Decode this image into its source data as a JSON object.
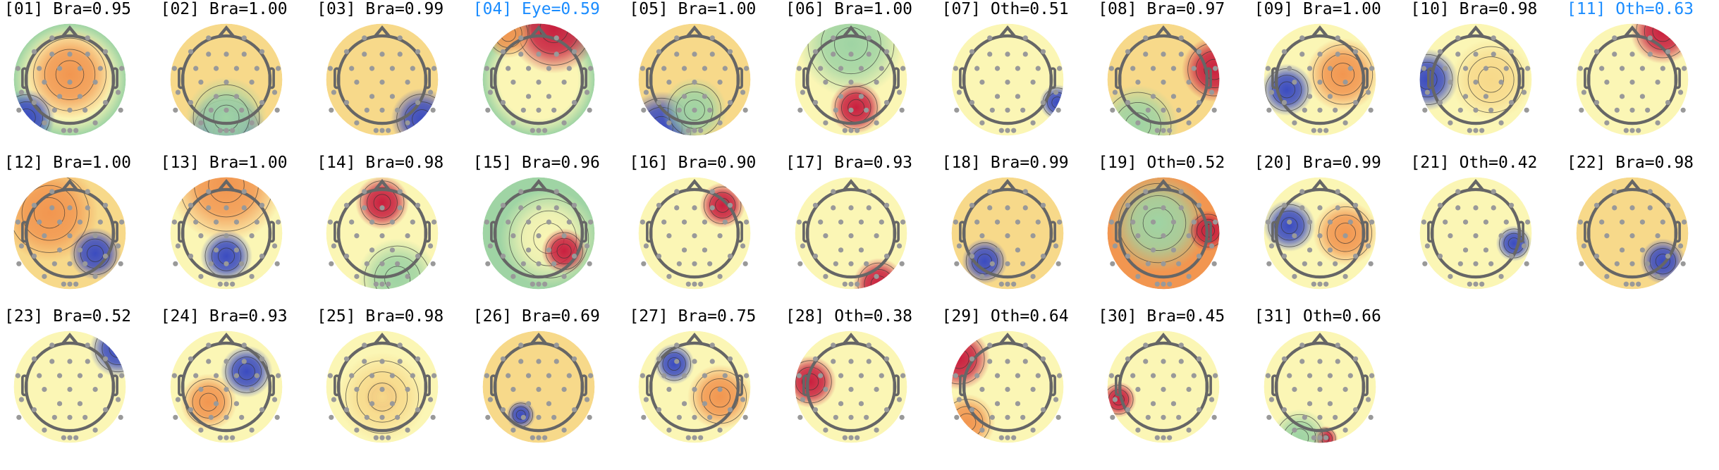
{
  "highlight_color": "#1a8cff",
  "chart_data": {
    "type": "heatmap",
    "layout": "grid of scalp topographic maps, 11 per row",
    "colormap": [
      "#3b4cc0",
      "#9fd4a4",
      "#fbf6b5",
      "#f4a25a",
      "#c9203f"
    ],
    "components": [
      {
        "label": "[01] Bra=0.95",
        "index": 1,
        "class": "Bra",
        "probability": 0.95,
        "highlighted": false
      },
      {
        "label": "[02] Bra=1.00",
        "index": 2,
        "class": "Bra",
        "probability": 1.0,
        "highlighted": false
      },
      {
        "label": "[03] Bra=0.99",
        "index": 3,
        "class": "Bra",
        "probability": 0.99,
        "highlighted": false
      },
      {
        "label": "[04] Eye=0.59",
        "index": 4,
        "class": "Eye",
        "probability": 0.59,
        "highlighted": true
      },
      {
        "label": "[05] Bra=1.00",
        "index": 5,
        "class": "Bra",
        "probability": 1.0,
        "highlighted": false
      },
      {
        "label": "[06] Bra=1.00",
        "index": 6,
        "class": "Bra",
        "probability": 1.0,
        "highlighted": false
      },
      {
        "label": "[07] Oth=0.51",
        "index": 7,
        "class": "Oth",
        "probability": 0.51,
        "highlighted": false
      },
      {
        "label": "[08] Bra=0.97",
        "index": 8,
        "class": "Bra",
        "probability": 0.97,
        "highlighted": false
      },
      {
        "label": "[09] Bra=1.00",
        "index": 9,
        "class": "Bra",
        "probability": 1.0,
        "highlighted": false
      },
      {
        "label": "[10] Bra=0.98",
        "index": 10,
        "class": "Bra",
        "probability": 0.98,
        "highlighted": false
      },
      {
        "label": "[11] Oth=0.63",
        "index": 11,
        "class": "Oth",
        "probability": 0.63,
        "highlighted": true
      },
      {
        "label": "[12] Bra=1.00",
        "index": 12,
        "class": "Bra",
        "probability": 1.0,
        "highlighted": false
      },
      {
        "label": "[13] Bra=1.00",
        "index": 13,
        "class": "Bra",
        "probability": 1.0,
        "highlighted": false
      },
      {
        "label": "[14] Bra=0.98",
        "index": 14,
        "class": "Bra",
        "probability": 0.98,
        "highlighted": false
      },
      {
        "label": "[15] Bra=0.96",
        "index": 15,
        "class": "Bra",
        "probability": 0.96,
        "highlighted": false
      },
      {
        "label": "[16] Bra=0.90",
        "index": 16,
        "class": "Bra",
        "probability": 0.9,
        "highlighted": false
      },
      {
        "label": "[17] Bra=0.93",
        "index": 17,
        "class": "Bra",
        "probability": 0.93,
        "highlighted": false
      },
      {
        "label": "[18] Bra=0.99",
        "index": 18,
        "class": "Bra",
        "probability": 0.99,
        "highlighted": false
      },
      {
        "label": "[19] Oth=0.52",
        "index": 19,
        "class": "Oth",
        "probability": 0.52,
        "highlighted": false
      },
      {
        "label": "[20] Bra=0.99",
        "index": 20,
        "class": "Bra",
        "probability": 0.99,
        "highlighted": false
      },
      {
        "label": "[21] Oth=0.42",
        "index": 21,
        "class": "Oth",
        "probability": 0.42,
        "highlighted": false
      },
      {
        "label": "[22] Bra=0.98",
        "index": 22,
        "class": "Bra",
        "probability": 0.98,
        "highlighted": false
      },
      {
        "label": "[23] Bra=0.52",
        "index": 23,
        "class": "Bra",
        "probability": 0.52,
        "highlighted": false
      },
      {
        "label": "[24] Bra=0.93",
        "index": 24,
        "class": "Bra",
        "probability": 0.93,
        "highlighted": false
      },
      {
        "label": "[25] Bra=0.98",
        "index": 25,
        "class": "Bra",
        "probability": 0.98,
        "highlighted": false
      },
      {
        "label": "[26] Bra=0.69",
        "index": 26,
        "class": "Bra",
        "probability": 0.69,
        "highlighted": false
      },
      {
        "label": "[27] Bra=0.75",
        "index": 27,
        "class": "Bra",
        "probability": 0.75,
        "highlighted": false
      },
      {
        "label": "[28] Oth=0.38",
        "index": 28,
        "class": "Oth",
        "probability": 0.38,
        "highlighted": false
      },
      {
        "label": "[29] Oth=0.64",
        "index": 29,
        "class": "Oth",
        "probability": 0.64,
        "highlighted": false
      },
      {
        "label": "[30] Bra=0.45",
        "index": 30,
        "class": "Bra",
        "probability": 0.45,
        "highlighted": false
      },
      {
        "label": "[31] Oth=0.66",
        "index": 31,
        "class": "Oth",
        "probability": 0.66,
        "highlighted": false
      }
    ]
  }
}
